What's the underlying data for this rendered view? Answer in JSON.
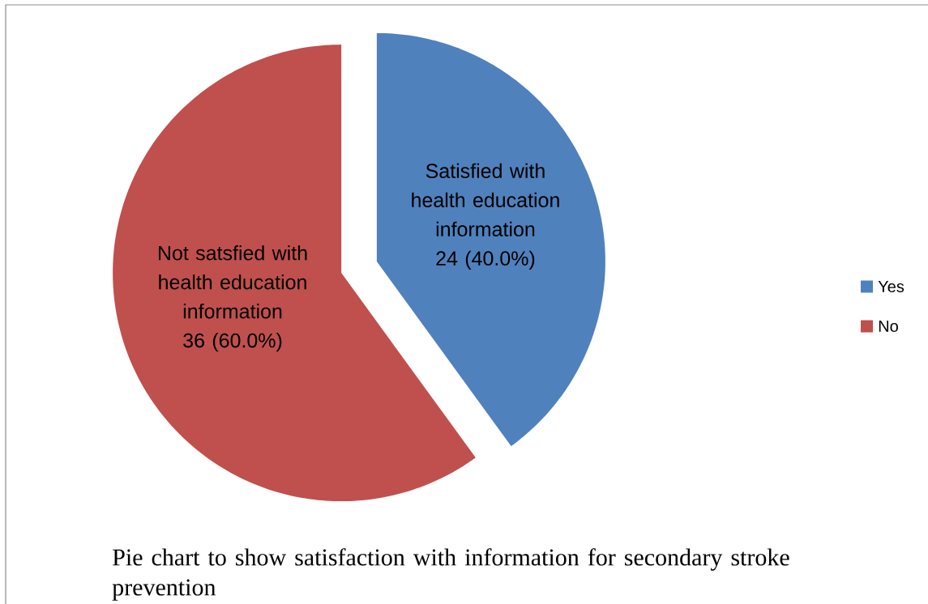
{
  "chart_data": {
    "type": "pie",
    "categories": [
      "Yes",
      "No"
    ],
    "values": [
      24,
      36
    ],
    "colors": [
      "#4f81bd",
      "#c0504d"
    ],
    "value_labels": [
      "24 (40.0%)",
      "36 (60.0%)"
    ],
    "legend": "right",
    "annotations": [
      "Satisfied with health education information",
      "Not satsfied with health education information",
      "Pie chart to show satisfaction with information for secondary stroke prevention"
    ]
  }
}
